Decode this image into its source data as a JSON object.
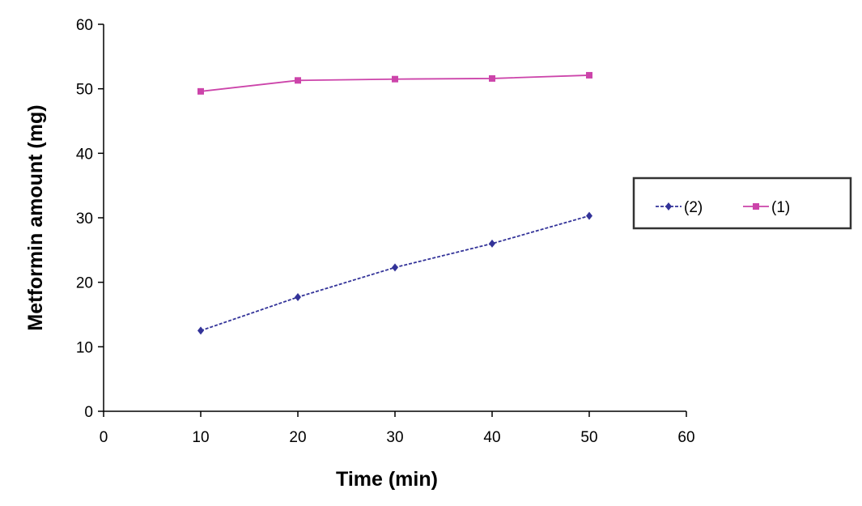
{
  "chart_data": {
    "type": "line",
    "title": "",
    "xlabel": "Time (min)",
    "ylabel": "Metformin amount (mg)",
    "xlim": [
      0,
      60
    ],
    "ylim": [
      0,
      60
    ],
    "xticks": [
      0,
      10,
      20,
      30,
      40,
      50,
      60
    ],
    "yticks": [
      0,
      10,
      20,
      30,
      40,
      50,
      60
    ],
    "x_tick_labels": [
      "0",
      "10",
      "20",
      "30",
      "40",
      "50",
      "60"
    ],
    "y_tick_labels": [
      "0",
      "10",
      "20",
      "30",
      "40",
      "50",
      "60"
    ],
    "grid": false,
    "legend_position": "right",
    "x": [
      10,
      20,
      30,
      40,
      50
    ],
    "series": [
      {
        "name": "(2)",
        "values": [
          12.5,
          17.7,
          22.3,
          26.0,
          30.3
        ],
        "color": "#333399",
        "marker": "diamond",
        "dashed": true
      },
      {
        "name": "(1)",
        "values": [
          49.6,
          51.3,
          51.5,
          51.6,
          52.1
        ],
        "color": "#cc44aa",
        "marker": "square",
        "dashed": false
      }
    ]
  }
}
